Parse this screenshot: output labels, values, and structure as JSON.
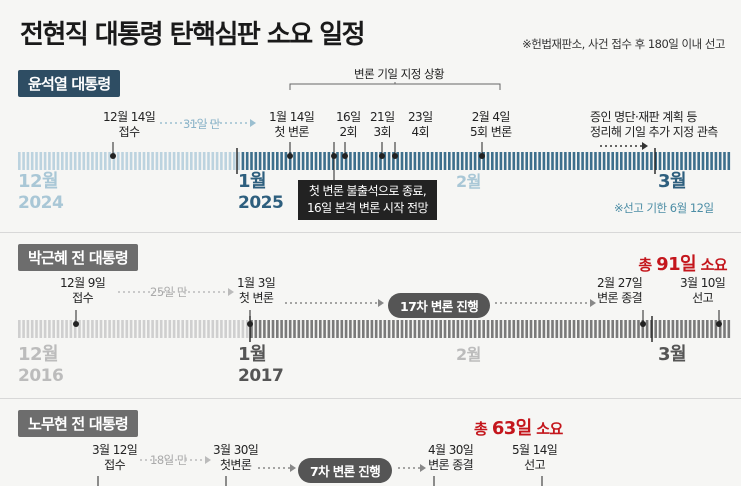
{
  "title": "전현직 대통령 탄핵심판 소요 일정",
  "note": "※헌법재판소, 사건 접수 후 180일 이내 선고",
  "yoon": {
    "label": "윤석열 대통령",
    "hearing_status": "변론 기일 지정 상황",
    "received": "12월 14일\n접수",
    "gap": "31일 만",
    "first": "1월 14일\n첫 변론",
    "h2": "16일\n2회",
    "h3": "21일\n3회",
    "h4": "23일\n4회",
    "h5": "2월 4일\n5회 변론",
    "future": "증인 명단·재판 계획 등\n정리해 기일 추가 지정 관측",
    "m_dec": "12월",
    "y_2024": "2024",
    "m_jan": "1월",
    "y_2025": "2025",
    "m_feb": "2월",
    "m_mar": "3월",
    "callout": "첫 변론 불출석으로 종료,\n16일 본격 변론 시작 전망",
    "deadline": "※선고 기한 6월 12일"
  },
  "park": {
    "label": "박근혜 전 대통령",
    "total_pre": "총 ",
    "total_num": "91일",
    "total_post": " 소요",
    "received": "12월 9일\n접수",
    "gap": "25일 만",
    "first": "1월 3일\n첫 변론",
    "pill": "17차 변론 진행",
    "end": "2월 27일\n변론 종결",
    "verdict": "3월 10일\n선고",
    "m_dec": "12월",
    "y_2016": "2016",
    "m_jan": "1월",
    "y_2017": "2017",
    "m_feb": "2월",
    "m_mar": "3월"
  },
  "roh": {
    "label": "노무현 전 대통령",
    "total_pre": "총 ",
    "total_num": "63일",
    "total_post": " 소요",
    "received": "3월 12일\n접수",
    "gap": "18일 만",
    "first": "3월 30일\n첫변론",
    "pill": "7차 변론 진행",
    "end": "4월 30일\n변론 종결",
    "verdict": "5월 14일\n선고"
  },
  "colors": {
    "yoon_bar_light": "#bcd3df",
    "yoon_bar_dark": "#3d6f8c",
    "park_bar_light": "#cfcfcf",
    "park_bar_dark": "#7a7a7a",
    "yoon_label_bg": "#2e4d63",
    "gray_label_bg": "#6d6d6d",
    "accent_red": "#c4161c"
  }
}
